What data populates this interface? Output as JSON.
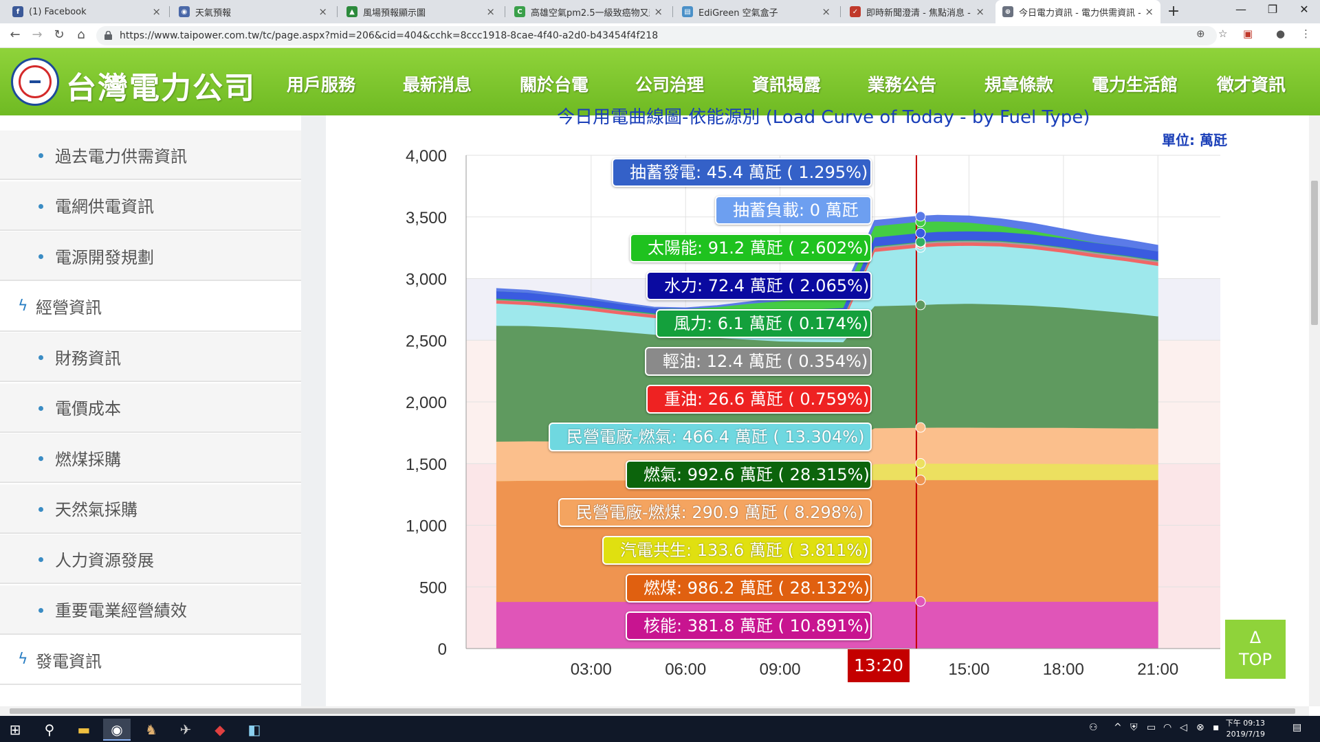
{
  "browser": {
    "tabs": [
      {
        "title": "(1) Facebook",
        "icon": "facebook-icon",
        "color": "#3b5998",
        "glyph": "f"
      },
      {
        "title": "天氣預報",
        "icon": "eye-icon",
        "color": "#4a68a8",
        "glyph": "◉"
      },
      {
        "title": "風場預報顯示圖",
        "icon": "map-icon",
        "color": "#2c8a3c",
        "glyph": "▲"
      },
      {
        "title": "高雄空氣pm2.5一級致癌物又飆紅",
        "icon": "news-icon",
        "color": "#3aa04a",
        "glyph": "C"
      },
      {
        "title": "EdiGreen 空氣盒子",
        "icon": "doc-icon",
        "color": "#4a90c8",
        "glyph": "▤"
      },
      {
        "title": "即時新聞澄清 - 焦點消息 - 中華民國",
        "icon": "flag-icon",
        "color": "#c0392b",
        "glyph": "✓"
      },
      {
        "title": "今日電力資訊 - 電力供需資訊 - 業",
        "icon": "globe-icon",
        "color": "#6b7280",
        "glyph": "⊕"
      }
    ],
    "active_tab": 6,
    "url": "https://www.taipower.com.tw/tc/page.aspx?mid=206&cid=404&cchk=8ccc1918-8cae-4f40-a2d0-b43454f4f218"
  },
  "site": {
    "logo_text": "台灣電力公司",
    "nav": [
      "用戶服務",
      "最新消息",
      "關於台電",
      "公司治理",
      "資訊揭露",
      "業務公告",
      "規章條款",
      "電力生活館",
      "徵才資訊"
    ]
  },
  "sidebar": {
    "items": [
      {
        "label": "過去電力供需資訊",
        "type": "sub"
      },
      {
        "label": "電網供電資訊",
        "type": "sub"
      },
      {
        "label": "電源開發規劃",
        "type": "sub"
      },
      {
        "label": "經營資訊",
        "type": "cat"
      },
      {
        "label": "財務資訊",
        "type": "sub"
      },
      {
        "label": "電價成本",
        "type": "sub"
      },
      {
        "label": "燃煤採購",
        "type": "sub"
      },
      {
        "label": "天然氣採購",
        "type": "sub"
      },
      {
        "label": "人力資源發展",
        "type": "sub"
      },
      {
        "label": "重要電業經營績效",
        "type": "sub"
      },
      {
        "label": "發電資訊",
        "type": "cat"
      }
    ]
  },
  "chart": {
    "title": "今日用電曲線圖-依能源別 (Load Curve of Today - by Fuel Type)",
    "unit": "單位: 萬瓩",
    "current_time": "13:20",
    "y_ticks": [
      "4,000",
      "3,500",
      "3,000",
      "2,500",
      "2,000",
      "1,500",
      "1,000",
      "500",
      "0"
    ],
    "x_ticks": [
      "03:00",
      "06:00",
      "09:00",
      "12:00",
      "15:00",
      "18:00",
      "21:00"
    ],
    "tooltips": [
      {
        "text": "抽蓄發電: 45.4 萬瓩 ( 1.295%)",
        "color": "#3461c8"
      },
      {
        "text": "抽蓄負載: 0 萬瓩",
        "color": "#6d9ff0"
      },
      {
        "text": "太陽能: 91.2 萬瓩 ( 2.602%)",
        "color": "#1fc21f"
      },
      {
        "text": "水力: 72.4 萬瓩 ( 2.065%)",
        "color": "#0a0aa0"
      },
      {
        "text": "風力: 6.1 萬瓩 ( 0.174%)",
        "color": "#14a03c"
      },
      {
        "text": "輕油: 12.4 萬瓩 ( 0.354%)",
        "color": "#8a8a8a"
      },
      {
        "text": "重油: 26.6 萬瓩 ( 0.759%)",
        "color": "#ee2222"
      },
      {
        "text": "民營電廠-燃氣: 466.4 萬瓩 ( 13.304%)",
        "color": "#6fd8e0"
      },
      {
        "text": "燃氣: 992.6 萬瓩 ( 28.315%)",
        "color": "#0c640c"
      },
      {
        "text": "民營電廠-燃煤: 290.9 萬瓩 ( 8.298%)",
        "color": "#f4a460"
      },
      {
        "text": "汽電共生: 133.6 萬瓩 ( 3.811%)",
        "color": "#e0e010"
      },
      {
        "text": "燃煤: 986.2 萬瓩 ( 28.132%)",
        "color": "#e06010"
      },
      {
        "text": "核能: 381.8 萬瓩 ( 10.891%)",
        "color": "#c81490"
      }
    ],
    "top_button": {
      "arrow": "Δ",
      "label": "TOP"
    }
  },
  "chart_data": {
    "type": "area",
    "title": "今日用電曲線圖-依能源別 (Load Curve of Today - by Fuel Type)",
    "ylabel": "單位: 萬瓩",
    "ylim": [
      0,
      4000
    ],
    "x_hours": [
      0,
      1,
      2,
      3,
      4,
      5,
      6,
      7,
      8,
      9,
      10,
      11,
      12,
      13.33,
      14,
      15,
      16,
      17,
      18,
      19,
      20,
      21
    ],
    "series": [
      {
        "name": "核能",
        "color": "#e055b8",
        "values": [
          380,
          381,
          381,
          381,
          381,
          381,
          381,
          381,
          381,
          381,
          381,
          381,
          382,
          382,
          382,
          382,
          382,
          382,
          382,
          382,
          382,
          382
        ]
      },
      {
        "name": "燃煤",
        "color": "#ef9450",
        "values": [
          980,
          982,
          983,
          984,
          985,
          985,
          986,
          986,
          986,
          986,
          986,
          986,
          986,
          986,
          986,
          986,
          986,
          986,
          986,
          986,
          986,
          986
        ]
      },
      {
        "name": "汽電共生",
        "color": "#ece060",
        "values": [
          0,
          0,
          0,
          0,
          0,
          0,
          0,
          0,
          0,
          0,
          0,
          0,
          130,
          134,
          134,
          134,
          133,
          133,
          132,
          130,
          128,
          126
        ]
      },
      {
        "name": "民營電廠-燃煤",
        "color": "#fbbf8c",
        "values": [
          320,
          320,
          318,
          316,
          314,
          312,
          310,
          305,
          300,
          296,
          292,
          290,
          291,
          291,
          292,
          292,
          292,
          292,
          292,
          292,
          292,
          292
        ]
      },
      {
        "name": "燃氣",
        "color": "#5f9a5f",
        "values": [
          940,
          935,
          925,
          910,
          890,
          870,
          860,
          850,
          840,
          830,
          830,
          830,
          990,
          993,
          1000,
          1005,
          1000,
          990,
          975,
          955,
          935,
          910
        ]
      },
      {
        "name": "民營電廠-燃氣",
        "color": "#9ee8ec",
        "values": [
          180,
          170,
          160,
          150,
          140,
          135,
          130,
          130,
          135,
          140,
          150,
          160,
          440,
          466,
          470,
          470,
          470,
          460,
          445,
          430,
          420,
          410
        ]
      },
      {
        "name": "重油",
        "color": "#f06666",
        "values": [
          25,
          25,
          25,
          25,
          25,
          25,
          25,
          26,
          26,
          26,
          26,
          27,
          27,
          27,
          27,
          27,
          27,
          27,
          27,
          27,
          27,
          27
        ]
      },
      {
        "name": "輕油",
        "color": "#a0a0a0",
        "values": [
          5,
          5,
          5,
          5,
          5,
          5,
          5,
          6,
          7,
          8,
          10,
          12,
          12,
          12,
          12,
          12,
          12,
          12,
          12,
          12,
          12,
          12
        ]
      },
      {
        "name": "風力",
        "color": "#33b060",
        "values": [
          10,
          10,
          9,
          9,
          9,
          8,
          8,
          7,
          7,
          7,
          6,
          6,
          6,
          6,
          6,
          6,
          6,
          6,
          6,
          6,
          6,
          6
        ]
      },
      {
        "name": "水力",
        "color": "#3a5be0",
        "values": [
          60,
          60,
          55,
          50,
          45,
          40,
          45,
          55,
          60,
          65,
          70,
          72,
          72,
          72,
          72,
          72,
          72,
          72,
          72,
          72,
          72,
          72
        ]
      },
      {
        "name": "太陽能",
        "color": "#44cc44",
        "values": [
          0,
          0,
          0,
          0,
          0,
          0,
          5,
          25,
          55,
          80,
          90,
          92,
          91,
          91,
          85,
          70,
          50,
          30,
          12,
          2,
          0,
          0
        ]
      },
      {
        "name": "抽蓄發電",
        "color": "#5b7be8",
        "values": [
          20,
          18,
          15,
          12,
          10,
          8,
          8,
          10,
          15,
          25,
          35,
          40,
          45,
          45,
          48,
          52,
          55,
          60,
          62,
          60,
          55,
          48
        ]
      }
    ]
  }
}
